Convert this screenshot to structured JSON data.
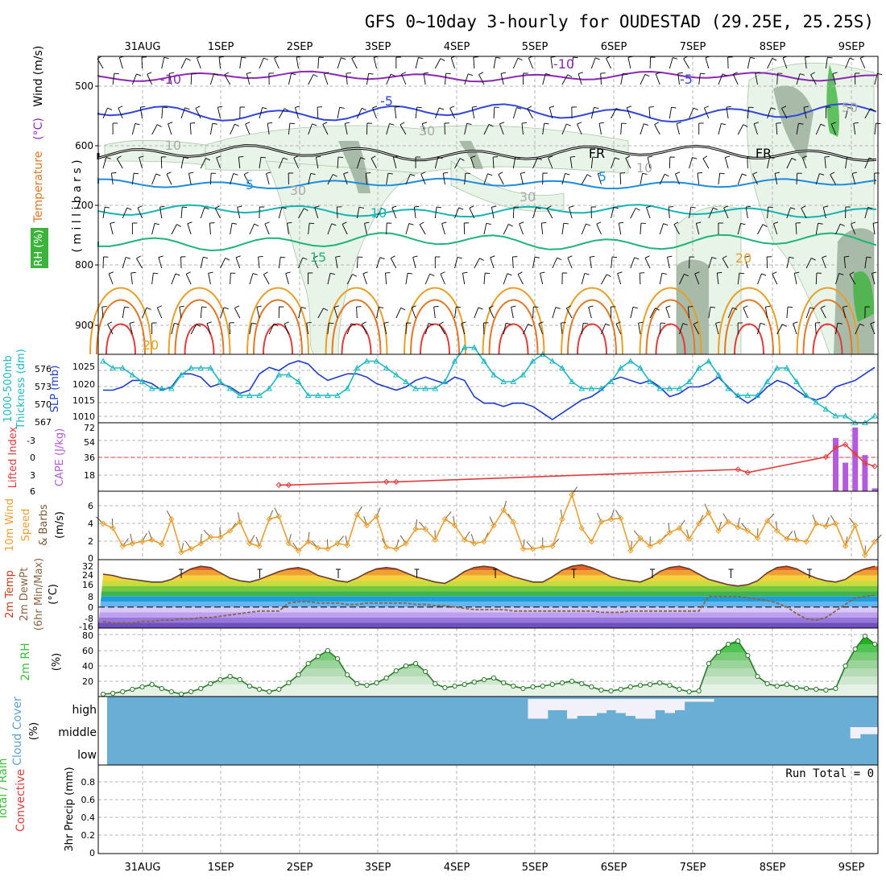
{
  "title": "GFS 0~10day 3-hourly for OUDESTAD (29.25E, 25.25S)",
  "colors": {
    "grid": "#b4b4b4",
    "frame": "#000000",
    "rh_fill_light": "#e8f4e8",
    "rh_fill_mid": "#b9d6b9",
    "rh_fill_dark": "#7d957d",
    "rh_green": "#3cb43c",
    "slp": "#1e3cc8",
    "thickness": "#20b8c0",
    "cape": "#b45adc",
    "lifted_index": "#e03c3c",
    "wind_speed": "#e8a030",
    "wind_barb": "#7a5a3a",
    "dewpoint": "#8c6446",
    "rh2m": "#3cbe3c",
    "cloud_bg": "#6aaed6",
    "cloud_fill": "#f2f0f8"
  },
  "date_labels": [
    "31AUG",
    "1SEP",
    "2SEP",
    "3SEP",
    "4SEP",
    "5SEP",
    "6SEP",
    "7SEP",
    "8SEP",
    "9SEP"
  ],
  "panels": {
    "upper": {
      "ylabel_left": [
        "Temperature",
        "(°C)",
        "Wind",
        "(m/s)"
      ],
      "ylabel_rh": "RH (%)",
      "ylabel_units": "( m i l l i b a r s )",
      "pressure_ticks": [
        "500",
        "600",
        "700",
        "800",
        "900"
      ],
      "contour_labels": [
        {
          "text": "-10",
          "color": "#8c28b4"
        },
        {
          "text": "-10",
          "color": "#8c28b4"
        },
        {
          "text": "-5",
          "color": "#3246dc"
        },
        {
          "text": "-5",
          "color": "#3246dc"
        },
        {
          "text": "FR",
          "color": "#000000"
        },
        {
          "text": "FR",
          "color": "#000000"
        },
        {
          "text": "5",
          "color": "#1e8cdc"
        },
        {
          "text": "5",
          "color": "#1e8cdc"
        },
        {
          "text": "10",
          "color": "#14b4b4"
        },
        {
          "text": "15",
          "color": "#1eb478"
        },
        {
          "text": "20",
          "color": "#e6a028"
        },
        {
          "text": "20",
          "color": "#e6a028"
        },
        {
          "text": "30",
          "color": "#aaaaaa"
        },
        {
          "text": "30",
          "color": "#aaaaaa"
        },
        {
          "text": "30",
          "color": "#aaaaaa"
        },
        {
          "text": "10",
          "color": "#aaaaaa"
        },
        {
          "text": "10",
          "color": "#aaaaaa"
        },
        {
          "text": "50",
          "color": "#aaaaaa"
        }
      ]
    },
    "slp": {
      "ylabel": [
        "1000-500mb",
        "Thickness (dm)",
        "SLP (mb)"
      ],
      "left_ticks": [
        "576",
        "573",
        "570",
        "567"
      ],
      "right_ticks": [
        "1025",
        "1020",
        "1015",
        "1010"
      ]
    },
    "cape": {
      "ylabel": [
        "Lifted Index",
        "CAPE (J/kg)"
      ],
      "left_ticks": [
        "-3",
        "0",
        "3",
        "6"
      ],
      "right_ticks": [
        "72",
        "54",
        "36",
        "18"
      ]
    },
    "wind10": {
      "ylabel": [
        "10m Wind",
        "Speed",
        "& Barbs",
        "(m/s)"
      ],
      "ticks": [
        "6",
        "4",
        "2",
        "0"
      ]
    },
    "temp2m": {
      "ylabel": [
        "2m Temp",
        "2m DewPt",
        "(6hr Min/Max)",
        "(°C)"
      ],
      "ticks": [
        "32",
        "24",
        "16",
        "8",
        "0",
        "-8",
        "-16"
      ]
    },
    "rh2m": {
      "ylabel": [
        "2m RH",
        "(%)"
      ],
      "ticks": [
        "80",
        "60",
        "40",
        "20"
      ]
    },
    "cloud": {
      "ylabel": [
        "Cloud Cover",
        "(%)"
      ],
      "levels": [
        "high",
        "middle",
        "low"
      ]
    },
    "precip": {
      "ylabel": [
        "Total / Rain",
        "Convective",
        "3hr Precip (mm)"
      ],
      "ticks": [
        "0.8",
        "0.6",
        "0.4",
        "0.2",
        "0"
      ],
      "run_total": "Run Total = 0"
    }
  },
  "chart_data": {
    "type": "line",
    "time_step_hours": 3,
    "n_steps": 80,
    "slp_mb": [
      1018,
      1018,
      1019,
      1021,
      1021,
      1020,
      1018,
      1019,
      1023,
      1023,
      1022,
      1019,
      1020,
      1019,
      1017,
      1018,
      1023,
      1025,
      1024,
      1026,
      1027,
      1026,
      1023,
      1021,
      1022,
      1023,
      1023,
      1022,
      1020,
      1019,
      1018,
      1019,
      1021,
      1022,
      1021,
      1020,
      1022,
      1021,
      1016,
      1014,
      1014,
      1013,
      1014,
      1014,
      1013,
      1011,
      1009,
      1011,
      1013,
      1015,
      1016,
      1018,
      1021,
      1022,
      1021,
      1020,
      1021,
      1019,
      1016,
      1017,
      1019,
      1019,
      1020,
      1022,
      1019,
      1016,
      1014,
      1016,
      1019,
      1021,
      1020,
      1018,
      1016,
      1015,
      1016,
      1019,
      1020,
      1021,
      1023,
      1025
    ],
    "thickness_dm": [
      576,
      575,
      575,
      574,
      573,
      572,
      572,
      572,
      574,
      575,
      575,
      575,
      573,
      572,
      571,
      571,
      571,
      572,
      574,
      574,
      573,
      571,
      571,
      571,
      571,
      572,
      575,
      576,
      576,
      575,
      574,
      573,
      572,
      572,
      572,
      573,
      576,
      578,
      578,
      576,
      574,
      573,
      573,
      574,
      576,
      577,
      576,
      575,
      573,
      572,
      572,
      572,
      573,
      575,
      576,
      575,
      573,
      572,
      572,
      572,
      573,
      575,
      576,
      574,
      572,
      571,
      571,
      571,
      573,
      575,
      575,
      573,
      571,
      570,
      569,
      568,
      568,
      567,
      567,
      568
    ],
    "lifted_index": [
      null,
      null,
      null,
      null,
      null,
      null,
      null,
      null,
      null,
      null,
      null,
      null,
      null,
      null,
      null,
      null,
      null,
      null,
      5,
      5,
      null,
      null,
      null,
      null,
      null,
      null,
      null,
      null,
      null,
      4.5,
      4.5,
      null,
      null,
      null,
      null,
      null,
      null,
      null,
      null,
      null,
      null,
      null,
      null,
      null,
      null,
      null,
      null,
      null,
      null,
      null,
      null,
      null,
      null,
      null,
      null,
      null,
      null,
      null,
      null,
      null,
      null,
      null,
      null,
      null,
      null,
      2.5,
      3,
      null,
      null,
      null,
      null,
      null,
      null,
      null,
      0.5,
      -1,
      -1.5,
      0,
      1.5,
      2
    ],
    "cape_jkg": [
      0,
      0,
      0,
      0,
      0,
      0,
      0,
      0,
      0,
      0,
      0,
      0,
      0,
      0,
      0,
      0,
      0,
      0,
      0,
      0,
      0,
      0,
      0,
      0,
      0,
      0,
      0,
      0,
      0,
      0,
      0,
      0,
      0,
      0,
      0,
      0,
      0,
      0,
      0,
      0,
      0,
      0,
      0,
      0,
      0,
      0,
      0,
      0,
      0,
      0,
      0,
      0,
      0,
      0,
      0,
      0,
      0,
      0,
      0,
      0,
      0,
      0,
      0,
      0,
      0,
      0,
      0,
      0,
      0,
      0,
      0,
      0,
      0,
      0,
      0,
      56,
      30,
      67,
      38,
      3
    ],
    "wind10m_ms": [
      4,
      3.5,
      1.5,
      1.8,
      2,
      2.2,
      1.7,
      4.5,
      0.8,
      1.2,
      1.8,
      2.5,
      2.5,
      3.2,
      4.2,
      1.8,
      1.5,
      4.5,
      4.8,
      1.8,
      1,
      2,
      1.3,
      1.2,
      1.8,
      1.6,
      5,
      3.8,
      4.8,
      1.4,
      1.2,
      1.8,
      3.4,
      3.4,
      2.2,
      4.5,
      3.8,
      2.2,
      1.8,
      2,
      3.8,
      5.5,
      4.2,
      1.2,
      1.2,
      1.4,
      1.5,
      4.5,
      7.2,
      3.5,
      2,
      4.2,
      4.5,
      4.6,
      1,
      2.4,
      1.5,
      2,
      3,
      3.5,
      2.3,
      4,
      5.2,
      3.2,
      4.2,
      3.6,
      3.2,
      2.4,
      4.3,
      3.2,
      2.3,
      2.2,
      2,
      4,
      3.7,
      4,
      1.5,
      3.8,
      0.5,
      2
    ],
    "temp2m_c": [
      25,
      24,
      22,
      21,
      20,
      19,
      19,
      21,
      25,
      29,
      31,
      30,
      26,
      22,
      20,
      19,
      21,
      24,
      27,
      29,
      30,
      28,
      24,
      22,
      20,
      19,
      22,
      26,
      29,
      30,
      29,
      26,
      23,
      21,
      19,
      18,
      22,
      27,
      30,
      31,
      30,
      26,
      23,
      21,
      19,
      19,
      23,
      28,
      31,
      32,
      30,
      27,
      23,
      21,
      20,
      19,
      22,
      27,
      30,
      31,
      29,
      25,
      21,
      19,
      17,
      16,
      17,
      20,
      26,
      30,
      31,
      29,
      25,
      22,
      20,
      19,
      21,
      26,
      29,
      31
    ],
    "dewpoint2m_c": [
      -11,
      -12,
      -12,
      -12,
      -11,
      -11,
      -10,
      -10,
      -9,
      -9,
      -8,
      -8,
      -7,
      -6,
      -5,
      -4,
      -3,
      -3,
      -3,
      3,
      4,
      4,
      3,
      3,
      3,
      2,
      2,
      3,
      3,
      3,
      3,
      3,
      2,
      2,
      1,
      1,
      0,
      -1,
      -2,
      -2,
      -2,
      -2,
      -3,
      -3,
      -3,
      -3,
      -3,
      -3,
      -3,
      -3,
      -3,
      -4,
      -4,
      -4,
      -3,
      -3,
      -3,
      -3,
      -3,
      -3,
      -3,
      -3,
      8,
      8,
      8,
      8,
      7,
      6,
      5,
      3,
      0,
      -5,
      -9,
      -10,
      -8,
      -3,
      2,
      7,
      8,
      9
    ],
    "rh2m_pct": [
      8,
      9,
      11,
      14,
      17,
      20,
      15,
      11,
      8,
      11,
      15,
      21,
      26,
      30,
      26,
      18,
      14,
      11,
      14,
      22,
      32,
      46,
      55,
      62,
      52,
      32,
      21,
      19,
      22,
      28,
      37,
      43,
      46,
      36,
      21,
      16,
      18,
      20,
      23,
      26,
      28,
      22,
      18,
      15,
      17,
      18,
      20,
      22,
      24,
      21,
      17,
      13,
      12,
      14,
      17,
      19,
      20,
      22,
      19,
      14,
      11,
      12,
      46,
      60,
      70,
      74,
      56,
      30,
      21,
      18,
      20,
      16,
      15,
      14,
      13,
      15,
      43,
      64,
      80,
      70
    ],
    "cloud_high_pct": [
      0,
      0,
      0,
      0,
      0,
      0,
      0,
      0,
      0,
      0,
      0,
      0,
      0,
      0,
      0,
      0,
      0,
      0,
      0,
      0,
      0,
      0,
      0,
      0,
      0,
      0,
      0,
      0,
      0,
      0,
      0,
      0,
      0,
      0,
      0,
      0,
      0,
      0,
      0,
      0,
      0,
      0,
      0,
      0,
      35,
      35,
      20,
      20,
      35,
      30,
      30,
      25,
      20,
      25,
      30,
      35,
      35,
      20,
      25,
      20,
      5,
      5,
      5,
      0,
      0,
      0,
      0,
      0,
      0,
      0,
      0,
      0,
      0,
      0,
      0,
      0,
      0,
      0,
      0,
      0
    ],
    "cloud_middle_pct": [
      0,
      0,
      0,
      0,
      0,
      0,
      0,
      0,
      0,
      0,
      0,
      0,
      0,
      0,
      0,
      0,
      0,
      0,
      0,
      0,
      0,
      0,
      0,
      0,
      0,
      0,
      0,
      0,
      0,
      0,
      0,
      0,
      0,
      0,
      0,
      0,
      0,
      0,
      0,
      0,
      0,
      0,
      0,
      0,
      0,
      0,
      0,
      0,
      0,
      0,
      0,
      0,
      0,
      0,
      0,
      0,
      0,
      0,
      0,
      0,
      0,
      0,
      0,
      0,
      0,
      0,
      0,
      0,
      0,
      0,
      0,
      0,
      0,
      0,
      0,
      0,
      0,
      40,
      25,
      25
    ],
    "precip_mm": [
      0,
      0,
      0,
      0,
      0,
      0,
      0,
      0,
      0,
      0,
      0,
      0,
      0,
      0,
      0,
      0,
      0,
      0,
      0,
      0,
      0,
      0,
      0,
      0,
      0,
      0,
      0,
      0,
      0,
      0,
      0,
      0,
      0,
      0,
      0,
      0,
      0,
      0,
      0,
      0,
      0,
      0,
      0,
      0,
      0,
      0,
      0,
      0,
      0,
      0,
      0,
      0,
      0,
      0,
      0,
      0,
      0,
      0,
      0,
      0,
      0,
      0,
      0,
      0,
      0,
      0,
      0,
      0,
      0,
      0,
      0,
      0,
      0,
      0,
      0,
      0,
      0,
      0,
      0,
      0
    ],
    "ylim": {
      "slp": [
        1008,
        1029
      ],
      "thickness": [
        567,
        577
      ],
      "cape": [
        0,
        72
      ],
      "lifted_index": [
        -5,
        6
      ],
      "wind": [
        0,
        7.6
      ],
      "temp": [
        -16,
        36
      ],
      "rh": [
        5,
        90
      ],
      "precip": [
        0,
        1
      ]
    },
    "grid": true
  }
}
